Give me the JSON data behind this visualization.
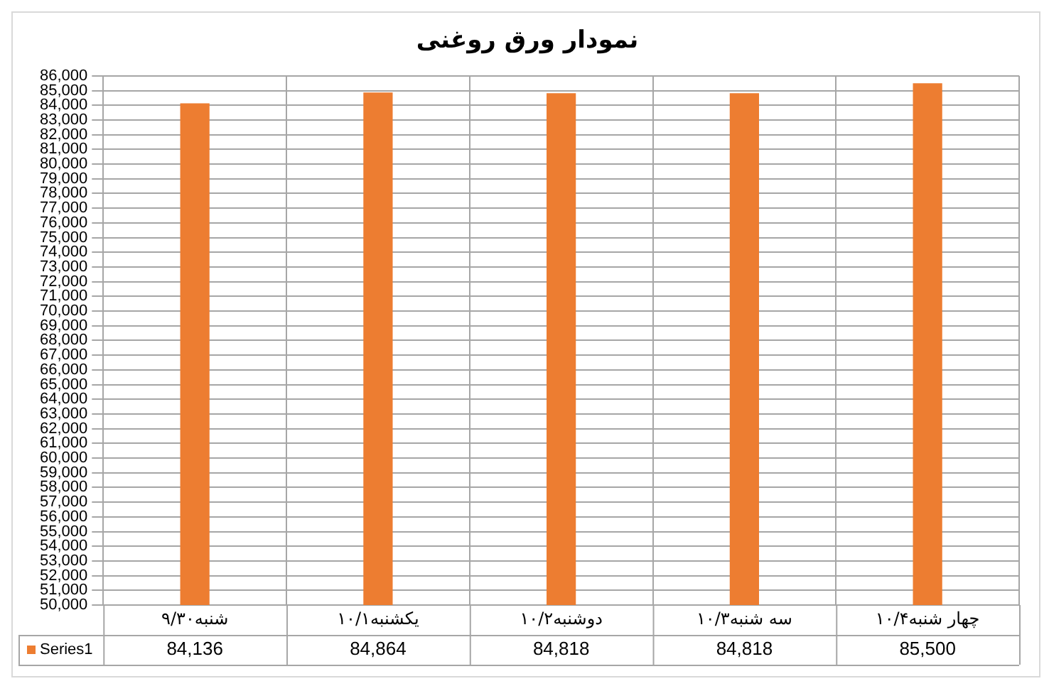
{
  "chart_data": {
    "type": "bar",
    "title": "نمودار ورق روغنی",
    "categories": [
      "شنبه۹/۳۰",
      "یکشنبه۱۰/۱",
      "دوشنبه۱۰/۲",
      "سه شنبه۱۰/۳",
      "چهار شنبه۱۰/۴"
    ],
    "series": [
      {
        "name": "Series1",
        "color": "#ed7d31",
        "values": [
          84136,
          84864,
          84818,
          84818,
          85500
        ],
        "value_labels": [
          "84,136",
          "84,864",
          "84,818",
          "84,818",
          "85,500"
        ]
      }
    ],
    "ylim": [
      50000,
      86000
    ],
    "yticks": [
      {
        "value": 50000,
        "label": "50,000"
      },
      {
        "value": 51000,
        "label": "51,000"
      },
      {
        "value": 52000,
        "label": "52,000"
      },
      {
        "value": 53000,
        "label": "53,000"
      },
      {
        "value": 54000,
        "label": "54,000"
      },
      {
        "value": 55000,
        "label": "55,000"
      },
      {
        "value": 56000,
        "label": "56,000"
      },
      {
        "value": 57000,
        "label": "57,000"
      },
      {
        "value": 58000,
        "label": "58,000"
      },
      {
        "value": 59000,
        "label": "59,000"
      },
      {
        "value": 60000,
        "label": "60,000"
      },
      {
        "value": 61000,
        "label": "61,000"
      },
      {
        "value": 62000,
        "label": "62,000"
      },
      {
        "value": 63000,
        "label": "63,000"
      },
      {
        "value": 64000,
        "label": "64,000"
      },
      {
        "value": 65000,
        "label": "65,000"
      },
      {
        "value": 66000,
        "label": "66,000"
      },
      {
        "value": 67000,
        "label": "67,000"
      },
      {
        "value": 68000,
        "label": "68,000"
      },
      {
        "value": 69000,
        "label": "69,000"
      },
      {
        "value": 70000,
        "label": "70,000"
      },
      {
        "value": 71000,
        "label": "71,000"
      },
      {
        "value": 72000,
        "label": "72,000"
      },
      {
        "value": 73000,
        "label": "73,000"
      },
      {
        "value": 74000,
        "label": "74,000"
      },
      {
        "value": 75000,
        "label": "75,000"
      },
      {
        "value": 76000,
        "label": "76,000"
      },
      {
        "value": 77000,
        "label": "77,000"
      },
      {
        "value": 78000,
        "label": "78,000"
      },
      {
        "value": 79000,
        "label": "79,000"
      },
      {
        "value": 80000,
        "label": "80,000"
      },
      {
        "value": 81000,
        "label": "81,000"
      },
      {
        "value": 82000,
        "label": "82,000"
      },
      {
        "value": 83000,
        "label": "83,000"
      },
      {
        "value": 84000,
        "label": "84,000"
      },
      {
        "value": 85000,
        "label": "85,000"
      },
      {
        "value": 86000,
        "label": "86,000"
      }
    ],
    "grid": true,
    "legend": "bottom"
  }
}
